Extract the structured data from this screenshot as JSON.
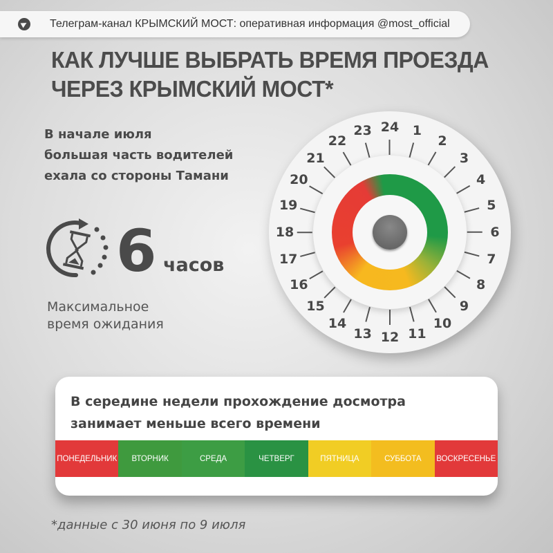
{
  "banner": {
    "icon": "telegram-icon",
    "text": "Телеграм-канал КРЫМСКИЙ МОСТ: оперативная информация @most_official"
  },
  "title": {
    "line1": "КАК ЛУЧШЕ ВЫБРАТЬ ВРЕМЯ ПРОЕЗДА",
    "line2": "ЧЕРЕЗ КРЫМСКИЙ МОСТ*"
  },
  "lead": {
    "line1": "В начале июля",
    "line2": "большая часть водителей",
    "line3": "ехала со стороны Тамани"
  },
  "wait": {
    "icon": "hourglass-refresh-icon",
    "value": "6",
    "unit": "часов",
    "caption1": "Максимальное",
    "caption2": "время ожидания"
  },
  "dial": {
    "hours": [
      "24",
      "1",
      "2",
      "3",
      "4",
      "5",
      "6",
      "7",
      "8",
      "9",
      "10",
      "11",
      "12",
      "13",
      "14",
      "15",
      "16",
      "17",
      "18",
      "19",
      "20",
      "21",
      "22",
      "23"
    ],
    "colors": {
      "green": "#1f9a47",
      "yellow": "#f6b91f",
      "red": "#e53b36"
    }
  },
  "week": {
    "text1": "В середине недели прохождение досмотра",
    "text2": "занимает меньше всего времени",
    "days": [
      {
        "label": "ПОНЕДЕЛЬНИК",
        "color": "#e2393a"
      },
      {
        "label": "ВТОРНИК",
        "color": "#3f9a3e"
      },
      {
        "label": "СРЕДА",
        "color": "#3d9d44"
      },
      {
        "label": "ЧЕТВЕРГ",
        "color": "#2a9243"
      },
      {
        "label": "ПЯТНИЦА",
        "color": "#f1cd24"
      },
      {
        "label": "СУББОТА",
        "color": "#f3bd1f"
      },
      {
        "label": "ВОСКРЕСЕНЬЕ",
        "color": "#e2393a"
      }
    ]
  },
  "footnote": "*данные с 30 июня по 9 июля"
}
